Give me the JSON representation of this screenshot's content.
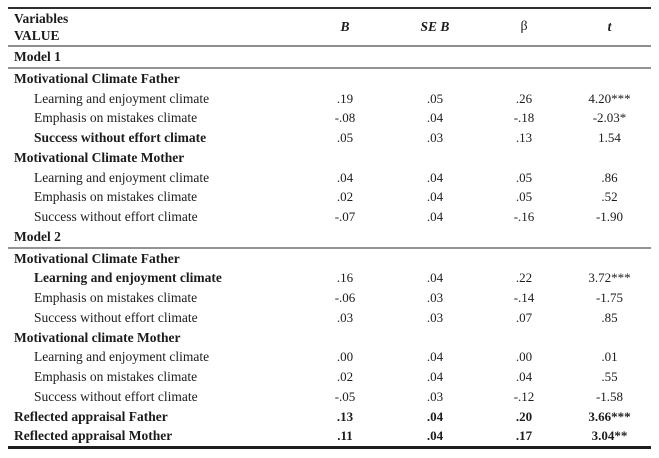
{
  "meta": {
    "description": "Academic paper regression table: motivational climate predictors of VALUE",
    "colors": {
      "text": "#1c1c1c",
      "rule_dark": "#2e2e2e",
      "rule_gray": "#8b9094",
      "background": "#ffffff"
    }
  },
  "table": {
    "header": {
      "col1_line1": "Variables",
      "col1_line2": "VALUE",
      "columns": [
        "B",
        "SE B",
        "β",
        "t"
      ]
    },
    "rows": [
      {
        "label": "Model 1",
        "values": [
          "",
          "",
          "",
          ""
        ]
      },
      {
        "label": "Motivational Climate Father",
        "values": [
          "",
          "",
          "",
          ""
        ]
      },
      {
        "label": "Learning and enjoyment climate",
        "values": [
          ".19",
          ".05",
          ".26",
          "4.20***"
        ]
      },
      {
        "label": "Emphasis on mistakes climate",
        "values": [
          "-.08",
          ".04",
          "-.18",
          "-2.03*"
        ]
      },
      {
        "label": "Success without effort climate",
        "values": [
          ".05",
          ".03",
          ".13",
          "1.54"
        ]
      },
      {
        "label": "Motivational Climate Mother",
        "values": [
          "",
          "",
          "",
          ""
        ]
      },
      {
        "label": "Learning and enjoyment climate",
        "values": [
          ".04",
          ".04",
          ".05",
          ".86"
        ]
      },
      {
        "label": "Emphasis on mistakes climate",
        "values": [
          ".02",
          ".04",
          ".05",
          ".52"
        ]
      },
      {
        "label": "Success without effort climate",
        "values": [
          "-.07",
          ".04",
          "-.16",
          "-1.90"
        ]
      },
      {
        "label": "Model 2",
        "values": [
          "",
          "",
          "",
          ""
        ]
      },
      {
        "label": "Motivational Climate Father",
        "values": [
          "",
          "",
          "",
          ""
        ]
      },
      {
        "label": "Learning and enjoyment climate",
        "values": [
          ".16",
          ".04",
          ".22",
          "3.72***"
        ]
      },
      {
        "label": "Emphasis on mistakes climate",
        "values": [
          "-.06",
          ".03",
          "-.14",
          "-1.75"
        ]
      },
      {
        "label": "Success without effort climate",
        "values": [
          ".03",
          ".03",
          ".07",
          ".85"
        ]
      },
      {
        "label": "Motivational climate Mother",
        "values": [
          "",
          "",
          "",
          ""
        ]
      },
      {
        "label": "Learning and enjoyment climate",
        "values": [
          ".00",
          ".04",
          ".00",
          ".01"
        ]
      },
      {
        "label": "Emphasis on mistakes climate",
        "values": [
          ".02",
          ".04",
          ".04",
          ".55"
        ]
      },
      {
        "label": "Success without effort climate",
        "values": [
          "-.05",
          ".03",
          "-.12",
          "-1.58"
        ]
      },
      {
        "label": "Reflected appraisal Father",
        "values": [
          ".13",
          ".04",
          ".20",
          "3.66***"
        ]
      },
      {
        "label": "Reflected appraisal Mother",
        "values": [
          ".11",
          ".04",
          ".17",
          "3.04**"
        ]
      }
    ]
  }
}
